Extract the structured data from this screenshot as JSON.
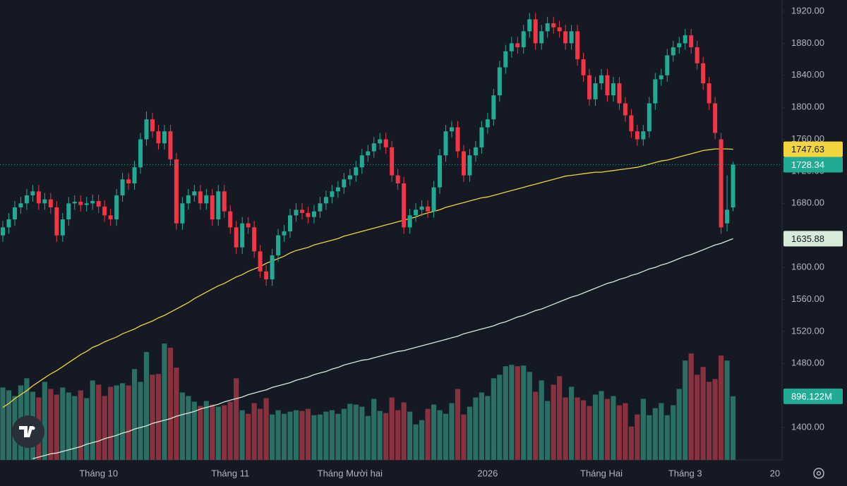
{
  "chart_data": {
    "type": "candlestick",
    "ylim": [
      1359.45,
      1934.1
    ],
    "yticks": [
      {
        "value": 1400,
        "label": "1400.00"
      },
      {
        "value": 1440,
        "label": "1440.00"
      },
      {
        "value": 1480,
        "label": "1480.00"
      },
      {
        "value": 1520,
        "label": "1520.00"
      },
      {
        "value": 1560,
        "label": "1560.00"
      },
      {
        "value": 1600,
        "label": "1600.00"
      },
      {
        "value": 1640,
        "label": "1640.00"
      },
      {
        "value": 1680,
        "label": "1680.00"
      },
      {
        "value": 1720,
        "label": "1720.00"
      },
      {
        "value": 1760,
        "label": "1760.00"
      },
      {
        "value": 1800,
        "label": "1800.00"
      },
      {
        "value": 1840,
        "label": "1840.00"
      },
      {
        "value": 1880,
        "label": "1880.00"
      },
      {
        "value": 1920,
        "label": "1920.00"
      }
    ],
    "up_color": "#22ab94",
    "down_color": "#f23645",
    "volume_up_color": "#2a6e64",
    "volume_down_color": "#8a3140",
    "categories": [
      null,
      null,
      null,
      null,
      null,
      null,
      null,
      null,
      null,
      null,
      null,
      null,
      null,
      null,
      null,
      null,
      "Tháng 10",
      null,
      null,
      null,
      null,
      null,
      null,
      null,
      null,
      null,
      null,
      null,
      null,
      null,
      null,
      null,
      null,
      null,
      null,
      null,
      null,
      null,
      "Tháng 11",
      null,
      null,
      null,
      null,
      null,
      null,
      null,
      null,
      null,
      null,
      null,
      null,
      null,
      null,
      null,
      null,
      null,
      null,
      null,
      "Tháng Mười hai",
      null,
      null,
      null,
      null,
      null,
      null,
      null,
      null,
      null,
      null,
      null,
      null,
      null,
      null,
      null,
      null,
      null,
      null,
      null,
      null,
      null,
      null,
      "2026",
      null,
      null,
      null,
      null,
      null,
      null,
      null,
      null,
      null,
      null,
      null,
      null,
      null,
      null,
      null,
      null,
      null,
      null,
      "Tháng Hai",
      null,
      null,
      null,
      null,
      null,
      null,
      null,
      null,
      null,
      null,
      null,
      null,
      null,
      "Tháng 3",
      null,
      null,
      null,
      null,
      null,
      null,
      null,
      null,
      null,
      null,
      null,
      null,
      null,
      null,
      "20"
    ],
    "open": [
      1640,
      1650,
      1660,
      1675,
      1680,
      1690,
      1695,
      1680,
      1685,
      1675,
      1640,
      1660,
      1680,
      1682,
      1678,
      1680,
      1683,
      1676,
      1665,
      1660,
      1690,
      1710,
      1705,
      1725,
      1760,
      1785,
      1770,
      1755,
      1770,
      1735,
      1655,
      1680,
      1690,
      1695,
      1680,
      1690,
      1660,
      1695,
      1670,
      1650,
      1625,
      1655,
      1650,
      1620,
      1595,
      1585,
      1615,
      1640,
      1645,
      1665,
      1672,
      1668,
      1663,
      1670,
      1680,
      1688,
      1695,
      1700,
      1710,
      1715,
      1725,
      1740,
      1745,
      1755,
      1760,
      1750,
      1715,
      1705,
      1650,
      1665,
      1672,
      1676,
      1670,
      1700,
      1740,
      1770,
      1775,
      1745,
      1715,
      1740,
      1750,
      1775,
      1785,
      1815,
      1850,
      1870,
      1880,
      1875,
      1895,
      1910,
      1880,
      1895,
      1905,
      1900,
      1895,
      1880,
      1895,
      1860,
      1840,
      1810,
      1830,
      1840,
      1815,
      1830,
      1805,
      1790,
      1770,
      1760,
      1770,
      1805,
      1835,
      1840,
      1865,
      1875,
      1880,
      1890,
      1875,
      1855,
      1830,
      1805,
      1760,
      1655,
      1675,
      null,
      null,
      null,
      null,
      null,
      null,
      null
    ],
    "high": [
      1658,
      1668,
      1683,
      1688,
      1698,
      1703,
      1703,
      1693,
      1693,
      1683,
      1668,
      1688,
      1690,
      1690,
      1688,
      1691,
      1691,
      1684,
      1673,
      1698,
      1718,
      1718,
      1733,
      1768,
      1795,
      1793,
      1778,
      1778,
      1778,
      1743,
      1688,
      1698,
      1703,
      1703,
      1698,
      1698,
      1703,
      1703,
      1678,
      1658,
      1663,
      1663,
      1658,
      1628,
      1603,
      1623,
      1648,
      1653,
      1673,
      1680,
      1680,
      1676,
      1678,
      1688,
      1696,
      1703,
      1708,
      1718,
      1723,
      1733,
      1748,
      1753,
      1763,
      1768,
      1768,
      1758,
      1723,
      1713,
      1673,
      1680,
      1684,
      1684,
      1708,
      1748,
      1778,
      1783,
      1783,
      1753,
      1748,
      1758,
      1783,
      1793,
      1823,
      1858,
      1878,
      1888,
      1888,
      1903,
      1918,
      1918,
      1903,
      1913,
      1913,
      1908,
      1903,
      1903,
      1903,
      1868,
      1848,
      1838,
      1848,
      1848,
      1838,
      1838,
      1813,
      1798,
      1778,
      1778,
      1813,
      1843,
      1848,
      1873,
      1883,
      1888,
      1898,
      1898,
      1883,
      1863,
      1838,
      1813,
      1768,
      1715,
      1732,
      null,
      null,
      null,
      null,
      null,
      null,
      null
    ],
    "low": [
      1632,
      1642,
      1652,
      1667,
      1672,
      1682,
      1672,
      1672,
      1667,
      1632,
      1632,
      1652,
      1672,
      1670,
      1670,
      1672,
      1668,
      1657,
      1652,
      1652,
      1682,
      1697,
      1697,
      1717,
      1752,
      1762,
      1747,
      1747,
      1727,
      1647,
      1647,
      1672,
      1682,
      1672,
      1672,
      1652,
      1652,
      1662,
      1642,
      1617,
      1617,
      1642,
      1612,
      1587,
      1577,
      1577,
      1607,
      1632,
      1637,
      1657,
      1660,
      1655,
      1655,
      1662,
      1672,
      1680,
      1687,
      1692,
      1702,
      1707,
      1717,
      1732,
      1737,
      1747,
      1742,
      1707,
      1697,
      1642,
      1642,
      1657,
      1664,
      1662,
      1662,
      1692,
      1732,
      1762,
      1737,
      1707,
      1707,
      1732,
      1742,
      1767,
      1777,
      1807,
      1842,
      1862,
      1867,
      1867,
      1887,
      1872,
      1872,
      1887,
      1892,
      1887,
      1872,
      1872,
      1852,
      1832,
      1802,
      1802,
      1822,
      1807,
      1807,
      1797,
      1782,
      1762,
      1752,
      1752,
      1762,
      1797,
      1827,
      1832,
      1857,
      1867,
      1872,
      1867,
      1847,
      1822,
      1797,
      1760,
      1642,
      1645,
      1670,
      null,
      null,
      null,
      null,
      null,
      null,
      null
    ],
    "close": [
      1650,
      1660,
      1675,
      1680,
      1690,
      1695,
      1680,
      1685,
      1675,
      1640,
      1660,
      1680,
      1682,
      1678,
      1680,
      1683,
      1676,
      1665,
      1660,
      1690,
      1710,
      1705,
      1725,
      1760,
      1785,
      1770,
      1755,
      1770,
      1735,
      1655,
      1680,
      1690,
      1695,
      1680,
      1690,
      1660,
      1695,
      1670,
      1650,
      1625,
      1655,
      1650,
      1620,
      1595,
      1585,
      1615,
      1640,
      1645,
      1665,
      1672,
      1668,
      1663,
      1670,
      1680,
      1688,
      1695,
      1700,
      1710,
      1715,
      1725,
      1740,
      1745,
      1755,
      1760,
      1750,
      1715,
      1705,
      1650,
      1665,
      1672,
      1676,
      1670,
      1700,
      1740,
      1770,
      1775,
      1745,
      1715,
      1740,
      1750,
      1775,
      1785,
      1815,
      1850,
      1870,
      1880,
      1875,
      1895,
      1910,
      1880,
      1895,
      1905,
      1900,
      1895,
      1880,
      1895,
      1860,
      1840,
      1810,
      1830,
      1840,
      1815,
      1830,
      1805,
      1790,
      1770,
      1760,
      1770,
      1805,
      1835,
      1840,
      1865,
      1875,
      1880,
      1890,
      1875,
      1855,
      1830,
      1805,
      1768,
      1650,
      1672,
      1728.34,
      null,
      null,
      null,
      null,
      null,
      null,
      null
    ],
    "volume": [
      1020,
      980,
      900,
      1050,
      1150,
      960,
      880,
      1100,
      1000,
      920,
      1020,
      950,
      900,
      980,
      870,
      1120,
      1060,
      900,
      1030,
      1050,
      1080,
      1050,
      1280,
      1100,
      1520,
      1200,
      1210,
      1640,
      1580,
      1300,
      950,
      900,
      820,
      760,
      830,
      780,
      750,
      770,
      820,
      1150,
      700,
      650,
      800,
      720,
      870,
      640,
      700,
      650,
      680,
      700,
      690,
      720,
      630,
      640,
      680,
      700,
      650,
      720,
      790,
      780,
      750,
      620,
      860,
      690,
      660,
      880,
      700,
      810,
      680,
      500,
      560,
      720,
      780,
      700,
      650,
      800,
      1000,
      640,
      750,
      880,
      950,
      900,
      1150,
      1200,
      1320,
      1340,
      1320,
      1330,
      1240,
      960,
      1120,
      830,
      1060,
      1180,
      880,
      1030,
      880,
      840,
      760,
      920,
      970,
      860,
      900,
      770,
      800,
      470,
      640,
      860,
      630,
      730,
      800,
      630,
      770,
      1000,
      1400,
      1500,
      1200,
      1310,
      1100,
      1140,
      1470,
      1400,
      896.122,
      null,
      null,
      null,
      null,
      null,
      null,
      null
    ],
    "volume_value_label": "896.122M",
    "series": [
      {
        "color": "#f2d43c",
        "label_text_color": "#131722",
        "values": [
          1425,
          1430,
          1436,
          1441,
          1446,
          1452,
          1457,
          1462,
          1467,
          1471,
          1476,
          1481,
          1486,
          1491,
          1495,
          1500,
          1503,
          1507,
          1510,
          1513,
          1517,
          1520,
          1523,
          1527,
          1530,
          1533,
          1537,
          1540,
          1544,
          1548,
          1552,
          1556,
          1561,
          1565,
          1569,
          1573,
          1577,
          1580,
          1584,
          1588,
          1591,
          1595,
          1598,
          1601,
          1605,
          1608,
          1611,
          1614,
          1618,
          1621,
          1623,
          1625,
          1628,
          1630,
          1632,
          1634,
          1636,
          1639,
          1641,
          1643,
          1645,
          1647,
          1649,
          1651,
          1653,
          1655,
          1657,
          1659,
          1661,
          1663,
          1666,
          1668,
          1670,
          1672,
          1675,
          1677,
          1679,
          1681,
          1683,
          1685,
          1687,
          1688,
          1690,
          1692,
          1694,
          1696,
          1698,
          1700,
          1702,
          1704,
          1706,
          1708,
          1710,
          1712,
          1714,
          1715,
          1716,
          1717,
          1718,
          1719,
          1719,
          1720,
          1721,
          1722,
          1723,
          1724,
          1725,
          1727,
          1729,
          1731,
          1733,
          1734,
          1736,
          1738,
          1740,
          1742,
          1744,
          1746,
          1747,
          1748,
          1748,
          1748,
          1747.63,
          null,
          null,
          null,
          null,
          null,
          null,
          null
        ]
      },
      {
        "color": "#d8ebd8",
        "label_text_color": "#131722",
        "values": [
          null,
          null,
          null,
          null,
          null,
          1361,
          1363,
          1365,
          1367,
          1368,
          1370,
          1372,
          1374,
          1376,
          1379,
          1381,
          1383,
          1386,
          1388,
          1390,
          1393,
          1395,
          1398,
          1400,
          1402,
          1405,
          1407,
          1409,
          1411,
          1414,
          1416,
          1418,
          1420,
          1423,
          1425,
          1427,
          1429,
          1432,
          1434,
          1436,
          1438,
          1441,
          1443,
          1445,
          1447,
          1450,
          1452,
          1454,
          1456,
          1459,
          1461,
          1463,
          1466,
          1468,
          1470,
          1473,
          1475,
          1478,
          1480,
          1482,
          1484,
          1485,
          1487,
          1489,
          1491,
          1493,
          1495,
          1496,
          1498,
          1500,
          1502,
          1504,
          1506,
          1508,
          1510,
          1512,
          1514,
          1517,
          1519,
          1521,
          1523,
          1525,
          1527,
          1530,
          1532,
          1535,
          1538,
          1540,
          1543,
          1546,
          1548,
          1551,
          1554,
          1557,
          1560,
          1563,
          1565,
          1568,
          1571,
          1574,
          1577,
          1580,
          1582,
          1585,
          1587,
          1590,
          1592,
          1595,
          1598,
          1600,
          1603,
          1605,
          1608,
          1611,
          1614,
          1616,
          1619,
          1622,
          1625,
          1628,
          1630,
          1633,
          1635.88,
          null,
          null,
          null,
          null,
          null,
          null,
          null
        ]
      }
    ]
  }
}
